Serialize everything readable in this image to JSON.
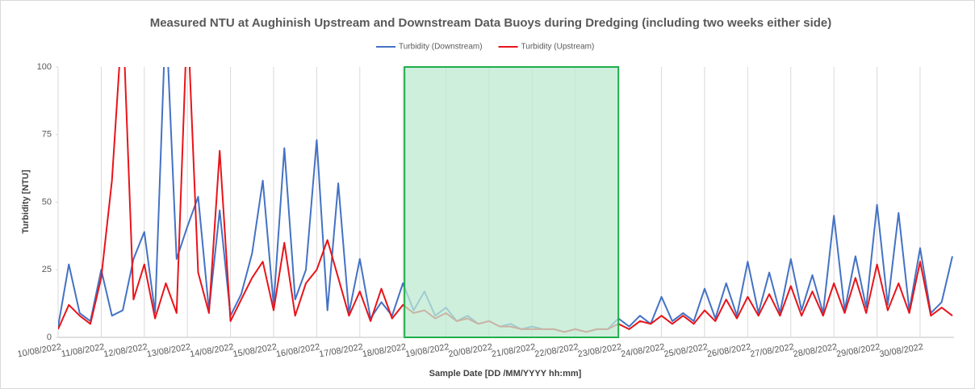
{
  "chart_data": {
    "type": "line",
    "title": "Measured NTU at Aughinish Upstream and Downstream Data Buoys during Dredging (including two weeks either side)",
    "x_label": "Sample Date [DD /MM/YYYY hh:mm]",
    "y_label": "Turbidity [NTU]",
    "categories": [
      "10/08/2022",
      null,
      null,
      null,
      "11/08/2022",
      null,
      null,
      null,
      "12/08/2022",
      null,
      null,
      null,
      "13/08/2022",
      null,
      null,
      null,
      "14/08/2022",
      null,
      null,
      null,
      "15/08/2022",
      null,
      null,
      null,
      "16/08/2022",
      null,
      null,
      null,
      "17/08/2022",
      null,
      null,
      null,
      "18/08/2022",
      null,
      null,
      null,
      "19/08/2022",
      null,
      null,
      null,
      "20/08/2022",
      null,
      null,
      null,
      "21/08/2022",
      null,
      null,
      null,
      "22/08/2022",
      null,
      null,
      null,
      "23/08/2022",
      null,
      null,
      null,
      "24/08/2022",
      null,
      null,
      null,
      "25/08/2022",
      null,
      null,
      null,
      "26/08/2022",
      null,
      null,
      null,
      "27/08/2022",
      null,
      null,
      null,
      "28/08/2022",
      null,
      null,
      null,
      "29/08/2022",
      null,
      null,
      null,
      "30/08/2022",
      null,
      null,
      null
    ],
    "series": [
      {
        "name": "Turbidity (Downstream)",
        "color": "#4472c4",
        "values": [
          4,
          27,
          9,
          6,
          25,
          8,
          10,
          29,
          39,
          9,
          120,
          29,
          41,
          52,
          10,
          47,
          8,
          16,
          31,
          58,
          12,
          70,
          14,
          25,
          73,
          10,
          57,
          9,
          29,
          7,
          13,
          8,
          20,
          10,
          17,
          8,
          11,
          6,
          8,
          5,
          6,
          4,
          5,
          3,
          4,
          3,
          3,
          2,
          3,
          2,
          3,
          3,
          7,
          4,
          8,
          5,
          15,
          6,
          9,
          6,
          18,
          7,
          20,
          8,
          28,
          9,
          24,
          9,
          29,
          10,
          23,
          9,
          45,
          10,
          30,
          11,
          49,
          12,
          46,
          10,
          33,
          9,
          13,
          30
        ]
      },
      {
        "name": "Turbidity (Upstream)",
        "color": "#e8141a",
        "values": [
          3,
          12,
          8,
          5,
          22,
          58,
          120,
          14,
          27,
          7,
          20,
          9,
          120,
          24,
          9,
          69,
          6,
          14,
          22,
          28,
          10,
          35,
          8,
          20,
          25,
          36,
          22,
          8,
          17,
          6,
          18,
          7,
          12,
          9,
          10,
          7,
          9,
          6,
          7,
          5,
          6,
          4,
          4,
          3,
          3,
          3,
          3,
          2,
          3,
          2,
          3,
          3,
          5,
          3,
          6,
          5,
          8,
          5,
          8,
          5,
          10,
          6,
          14,
          7,
          15,
          8,
          16,
          8,
          19,
          8,
          17,
          8,
          20,
          9,
          22,
          9,
          27,
          10,
          20,
          9,
          28,
          8,
          11,
          8
        ]
      }
    ],
    "ylim": [
      0,
      100
    ],
    "yticks": [
      0,
      25,
      50,
      75,
      100
    ],
    "highlight": {
      "from": "18/08/2022",
      "to": "23/08/2022",
      "color": "#bfe9d2",
      "edge": "#1fae4a"
    },
    "legend": "top"
  }
}
